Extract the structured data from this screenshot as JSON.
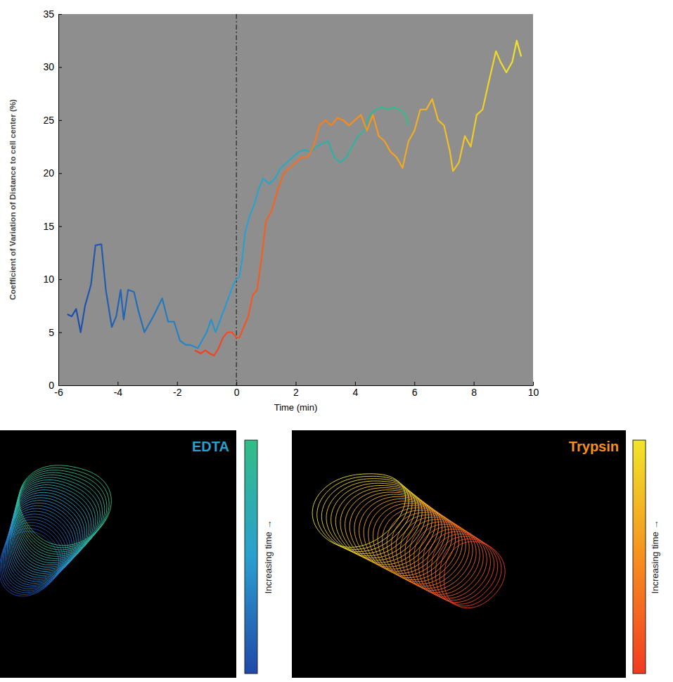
{
  "chart_data": {
    "type": "line",
    "x_label": "Time (min)",
    "y_label": "Coefficient of Variation of Distance to cell center (%)",
    "xlim": [
      -6,
      10
    ],
    "ylim": [
      0,
      35
    ],
    "xticks": [
      -6,
      -4,
      -2,
      0,
      2,
      4,
      6,
      8,
      10
    ],
    "yticks": [
      0,
      5,
      10,
      15,
      20,
      25,
      30,
      35
    ],
    "vline_x": 0,
    "series": [
      {
        "name": "EDTA",
        "colors": [
          "#1f49a8",
          "#2a9fd0",
          "#33bd86"
        ],
        "colorbar_label": "Increasing time →",
        "x": [
          -5.7,
          -5.55,
          -5.4,
          -5.25,
          -5.1,
          -4.9,
          -4.75,
          -4.55,
          -4.4,
          -4.2,
          -4.05,
          -3.9,
          -3.8,
          -3.65,
          -3.45,
          -3.3,
          -3.1,
          -2.8,
          -2.5,
          -2.3,
          -2.1,
          -1.9,
          -1.7,
          -1.55,
          -1.3,
          -1.0,
          -0.85,
          -0.7,
          -0.5,
          -0.3,
          -0.1,
          0.0,
          0.1,
          0.2,
          0.3,
          0.45,
          0.6,
          0.75,
          0.9,
          1.1,
          1.3,
          1.5,
          1.7,
          1.9,
          2.1,
          2.3,
          2.5,
          2.7,
          2.9,
          3.1,
          3.3,
          3.5,
          3.7,
          3.9,
          4.1,
          4.3,
          4.5,
          4.7,
          4.9,
          5.1,
          5.3,
          5.5,
          5.7,
          5.8
        ],
        "values": [
          6.7,
          6.5,
          7.2,
          5.0,
          7.5,
          9.5,
          13.2,
          13.3,
          9.0,
          5.5,
          6.5,
          9.0,
          6.2,
          9.0,
          8.8,
          7.0,
          5.0,
          6.5,
          8.2,
          6.0,
          6.0,
          4.2,
          3.8,
          3.8,
          3.5,
          5.0,
          6.2,
          5.0,
          6.5,
          8.0,
          9.5,
          10.0,
          10.2,
          12.0,
          14.5,
          16.0,
          17.0,
          18.5,
          19.5,
          19.0,
          19.5,
          20.5,
          21.0,
          21.5,
          22.0,
          22.2,
          22.0,
          22.5,
          22.8,
          23.0,
          21.5,
          21.0,
          21.5,
          22.5,
          23.5,
          24.0,
          25.5,
          26.0,
          26.2,
          26.0,
          26.2,
          26.0,
          25.5,
          24.5
        ]
      },
      {
        "name": "Trypsin",
        "colors": [
          "#f23a22",
          "#f5901f",
          "#f0e52a"
        ],
        "colorbar_label": "Increasing time →",
        "x": [
          -1.4,
          -1.2,
          -1.05,
          -0.9,
          -0.75,
          -0.6,
          -0.45,
          -0.3,
          -0.15,
          0.0,
          0.1,
          0.25,
          0.4,
          0.55,
          0.7,
          0.85,
          1.0,
          1.2,
          1.4,
          1.6,
          1.8,
          2.0,
          2.2,
          2.4,
          2.6,
          2.8,
          3.0,
          3.2,
          3.4,
          3.6,
          3.8,
          4.0,
          4.2,
          4.4,
          4.6,
          4.8,
          5.0,
          5.2,
          5.4,
          5.6,
          5.8,
          6.0,
          6.2,
          6.4,
          6.6,
          6.8,
          7.0,
          7.2,
          7.3,
          7.5,
          7.7,
          7.9,
          8.1,
          8.3,
          8.5,
          8.75,
          8.9,
          9.1,
          9.3,
          9.45,
          9.6
        ],
        "values": [
          3.3,
          3.0,
          3.3,
          3.0,
          2.8,
          3.5,
          4.5,
          5.0,
          5.0,
          4.5,
          4.5,
          5.5,
          6.5,
          8.5,
          9.0,
          12.0,
          15.5,
          16.5,
          18.5,
          20.0,
          20.5,
          21.0,
          21.5,
          21.5,
          22.5,
          24.5,
          25.0,
          24.5,
          25.2,
          25.0,
          24.5,
          25.0,
          25.5,
          24.0,
          25.5,
          23.5,
          23.0,
          22.0,
          21.5,
          20.5,
          23.0,
          24.0,
          26.0,
          26.0,
          27.0,
          25.0,
          24.5,
          22.0,
          20.2,
          21.0,
          23.5,
          22.5,
          25.5,
          26.0,
          28.5,
          31.5,
          30.5,
          29.5,
          30.5,
          32.5,
          31.0
        ]
      }
    ]
  }
}
